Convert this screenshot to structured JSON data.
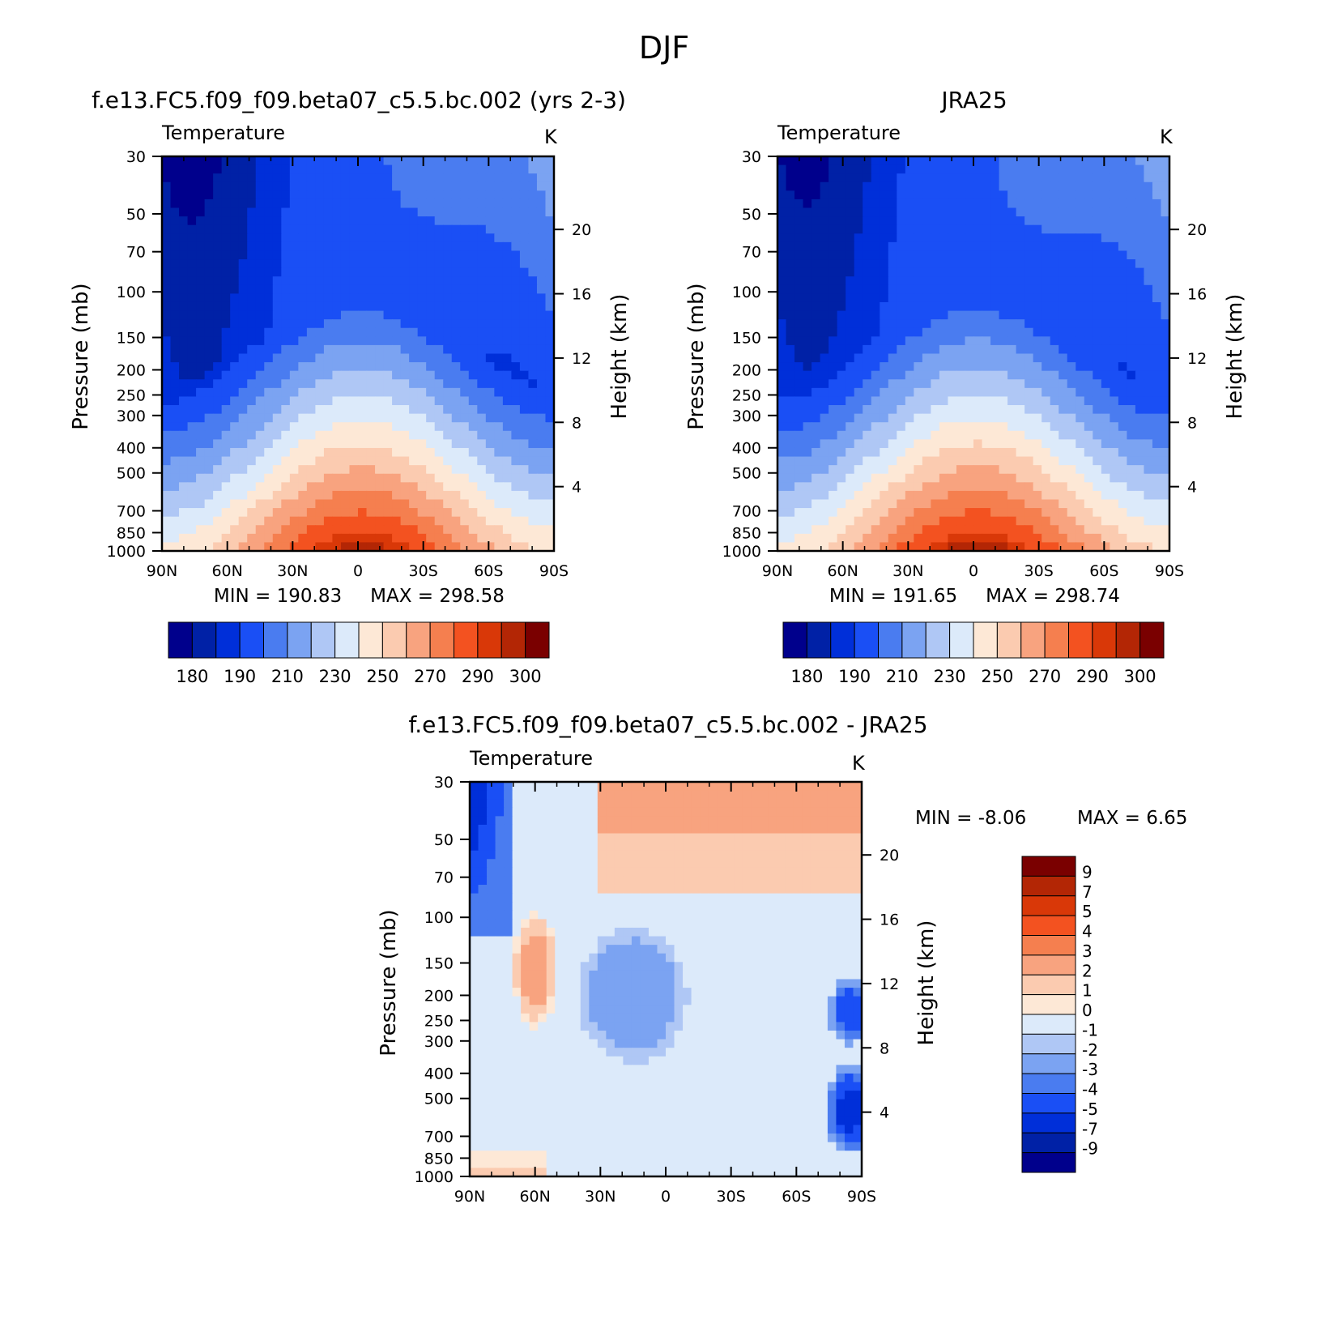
{
  "page_title": "DJF",
  "colors": {
    "abs_scale": [
      "#00008c",
      "#0021a6",
      "#002fd9",
      "#1a4ff5",
      "#4a7cf0",
      "#7ba3f2",
      "#afc7f5",
      "#dceafa",
      "#fde8d6",
      "#fbcbb0",
      "#f8a37f",
      "#f57f4f",
      "#f35220",
      "#d93808",
      "#b32605",
      "#7a0000"
    ],
    "diff_scale": [
      "#00008c",
      "#0021a6",
      "#002fd9",
      "#1a4ff5",
      "#4a7cf0",
      "#7ba3f2",
      "#afc7f5",
      "#dceafa",
      "#fde8d6",
      "#fbcbb0",
      "#f8a37f",
      "#f57f4f",
      "#f35220",
      "#d93808",
      "#b32605",
      "#7a0000"
    ]
  },
  "chart_data": [
    {
      "type": "heatmap",
      "id": "model",
      "title": "f.e13.FC5.f09_f09.beta07_c5.5.bc.002 (yrs 2-3)",
      "subtitle": "Temperature",
      "units": "K",
      "ylabel": "Pressure (mb)",
      "y2label": "Height (km)",
      "x_ticks": [
        "90N",
        "60N",
        "30N",
        "0",
        "30S",
        "60S",
        "90S"
      ],
      "y_ticks": [
        "30",
        "50",
        "70",
        "100",
        "150",
        "200",
        "250",
        "300",
        "400",
        "500",
        "700",
        "850",
        "1000"
      ],
      "y2_ticks": [
        "20",
        "16",
        "12",
        "8",
        "4"
      ],
      "min_label": "MIN = 190.83",
      "max_label": "MAX = 298.58",
      "min": 190.83,
      "max": 298.58,
      "colorbar_labels": [
        "180",
        "190",
        "210",
        "230",
        "250",
        "270",
        "290",
        "300"
      ]
    },
    {
      "type": "heatmap",
      "id": "obs",
      "title": "JRA25",
      "subtitle": "Temperature",
      "units": "K",
      "ylabel": "Pressure (mb)",
      "y2label": "Height (km)",
      "x_ticks": [
        "90N",
        "60N",
        "30N",
        "0",
        "30S",
        "60S",
        "90S"
      ],
      "y_ticks": [
        "30",
        "50",
        "70",
        "100",
        "150",
        "200",
        "250",
        "300",
        "400",
        "500",
        "700",
        "850",
        "1000"
      ],
      "y2_ticks": [
        "20",
        "16",
        "12",
        "8",
        "4"
      ],
      "min_label": "MIN = 191.65",
      "max_label": "MAX = 298.74",
      "min": 191.65,
      "max": 298.74,
      "colorbar_labels": [
        "180",
        "190",
        "210",
        "230",
        "250",
        "270",
        "290",
        "300"
      ]
    },
    {
      "type": "heatmap",
      "id": "diff",
      "title": "f.e13.FC5.f09_f09.beta07_c5.5.bc.002 - JRA25",
      "subtitle": "Temperature",
      "units": "K",
      "ylabel": "Pressure (mb)",
      "y2label": "Height (km)",
      "x_ticks": [
        "90N",
        "60N",
        "30N",
        "0",
        "30S",
        "60S",
        "90S"
      ],
      "y_ticks": [
        "30",
        "50",
        "70",
        "100",
        "150",
        "200",
        "250",
        "300",
        "400",
        "500",
        "700",
        "850",
        "1000"
      ],
      "y2_ticks": [
        "20",
        "16",
        "12",
        "8",
        "4"
      ],
      "min_label": "MIN = -8.06",
      "max_label": "MAX = 6.65",
      "min": -8.06,
      "max": 6.65,
      "colorbar_labels": [
        "9",
        "7",
        "5",
        "4",
        "3",
        "2",
        "1",
        "0",
        "-1",
        "-2",
        "-3",
        "-4",
        "-5",
        "-7",
        "-9"
      ]
    }
  ]
}
